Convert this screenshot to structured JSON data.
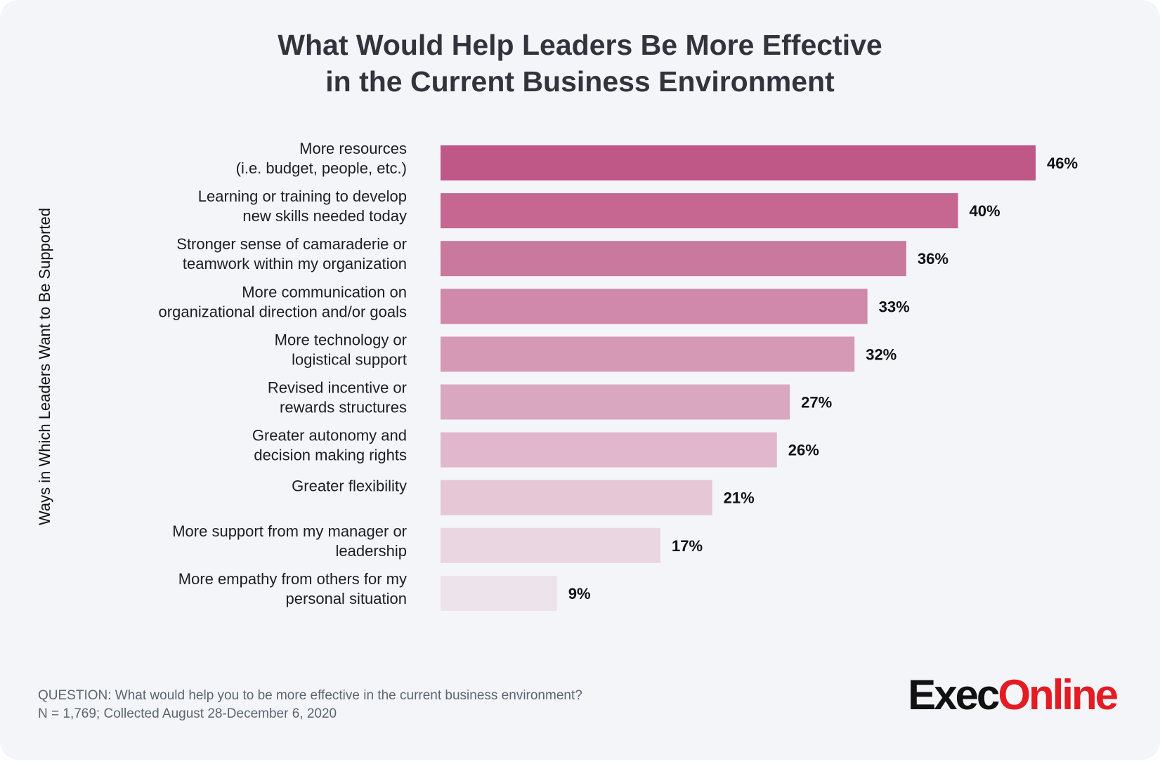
{
  "chart_data": {
    "type": "bar",
    "orientation": "horizontal",
    "title": [
      "What Would Help Leaders Be More Effective",
      "in the Current Business Environment"
    ],
    "ylabel": "Ways in Which Leaders Want to Be Supported",
    "categories": [
      [
        "More resources",
        "(i.e. budget, people, etc.)"
      ],
      [
        "Learning or training to develop",
        "new skills needed today"
      ],
      [
        "Stronger sense of camaraderie or",
        "teamwork within my organization"
      ],
      [
        "More communication on",
        "organizational direction and/or goals"
      ],
      [
        "More technology or",
        "logistical support"
      ],
      [
        "Revised incentive or",
        "rewards structures"
      ],
      [
        "Greater autonomy and",
        "decision making rights"
      ],
      [
        "Greater flexibility"
      ],
      [
        "More support from my manager or",
        "leadership"
      ],
      [
        "More empathy from others for my",
        "personal situation"
      ]
    ],
    "values": [
      46,
      40,
      36,
      33,
      32,
      27,
      26,
      21,
      17,
      9
    ],
    "value_labels": [
      "46%",
      "40%",
      "36%",
      "33%",
      "32%",
      "27%",
      "26%",
      "21%",
      "17%",
      "9%"
    ],
    "bar_colors": [
      "#bf5787",
      "#c56790",
      "#c9799e",
      "#d088ab",
      "#d598b5",
      "#d9a7c0",
      "#e0b7cc",
      "#e5c7d6",
      "#e9d6e0",
      "#ede3ea"
    ],
    "xlim": [
      0,
      46
    ],
    "grid": false,
    "legend": "none"
  },
  "footnote": {
    "question": "QUESTION: What would help you to be more effective in the current business environment?",
    "sample": "N = 1,769; Collected August 28-December 6, 2020"
  },
  "logo": {
    "part1": "Exec",
    "part2": "Online",
    "color1": "#111111",
    "color2": "#e31b23"
  }
}
